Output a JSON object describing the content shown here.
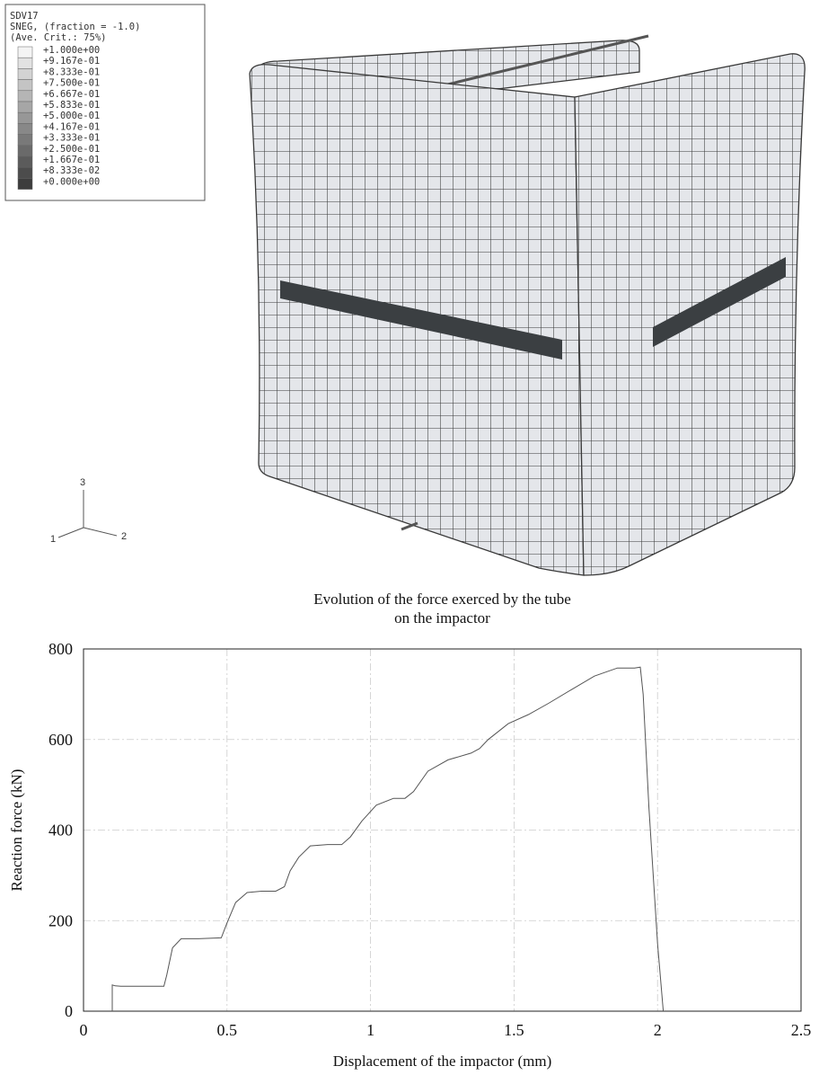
{
  "legend": {
    "lines": [
      "SDV17",
      "SNEG, (fraction = -1.0)",
      "(Ave. Crit.: 75%)"
    ],
    "entries": [
      {
        "label": "+1.000e+00",
        "color": "#f4f4f4"
      },
      {
        "label": "+9.167e-01",
        "color": "#e2e2e2"
      },
      {
        "label": "+8.333e-01",
        "color": "#d3d3d3"
      },
      {
        "label": "+7.500e-01",
        "color": "#c4c4c4"
      },
      {
        "label": "+6.667e-01",
        "color": "#b5b5b5"
      },
      {
        "label": "+5.833e-01",
        "color": "#a6a6a6"
      },
      {
        "label": "+5.000e-01",
        "color": "#979797"
      },
      {
        "label": "+4.167e-01",
        "color": "#888888"
      },
      {
        "label": "+3.333e-01",
        "color": "#797979"
      },
      {
        "label": "+2.500e-01",
        "color": "#6a6a6a"
      },
      {
        "label": "+1.667e-01",
        "color": "#5b5b5b"
      },
      {
        "label": "+8.333e-02",
        "color": "#4c4c4c"
      },
      {
        "label": "+0.000e+00",
        "color": "#3d3d3d"
      }
    ]
  },
  "triad": {
    "axis_x": "1",
    "axis_y": "2",
    "axis_z": "3"
  },
  "mesh_colors": {
    "face": "#e4e6ea",
    "grid": "#3a3a3a",
    "damaged": "#3b3f42"
  },
  "chart_data": {
    "type": "line",
    "title": "Evolution of the force exerced by the tube\non the impactor",
    "xlabel": "Displacement of the impactor (mm)",
    "ylabel": "Reaction force (kN)",
    "xlim": [
      0,
      2.5
    ],
    "ylim": [
      0,
      800
    ],
    "xticks": [
      0,
      0.5,
      1,
      1.5,
      2,
      2.5
    ],
    "xtick_labels": [
      "0",
      "0.5",
      "1",
      "1.5",
      "2",
      "2.5"
    ],
    "yticks": [
      0,
      200,
      400,
      600,
      800
    ],
    "ytick_labels": [
      "0",
      "200",
      "400",
      "600",
      "800"
    ],
    "grid": true,
    "series": [
      {
        "x": [
          0.1,
          0.1,
          0.11,
          0.13,
          0.2,
          0.28,
          0.29,
          0.31,
          0.34,
          0.4,
          0.48,
          0.5,
          0.53,
          0.57,
          0.62,
          0.67,
          0.7,
          0.72,
          0.75,
          0.79,
          0.85,
          0.9,
          0.93,
          0.97,
          1.02,
          1.08,
          1.12,
          1.15,
          1.2,
          1.27,
          1.35,
          1.38,
          1.41,
          1.48,
          1.55,
          1.62,
          1.7,
          1.78,
          1.86,
          1.92,
          1.94,
          1.95,
          1.97,
          2.0,
          2.02
        ],
        "y": [
          0,
          58,
          56,
          55,
          55,
          55,
          80,
          140,
          160,
          160,
          162,
          195,
          240,
          262,
          265,
          265,
          275,
          310,
          340,
          365,
          368,
          368,
          385,
          420,
          455,
          470,
          470,
          485,
          530,
          555,
          570,
          580,
          600,
          635,
          655,
          680,
          710,
          740,
          758,
          758,
          760,
          700,
          450,
          150,
          0
        ]
      }
    ]
  }
}
